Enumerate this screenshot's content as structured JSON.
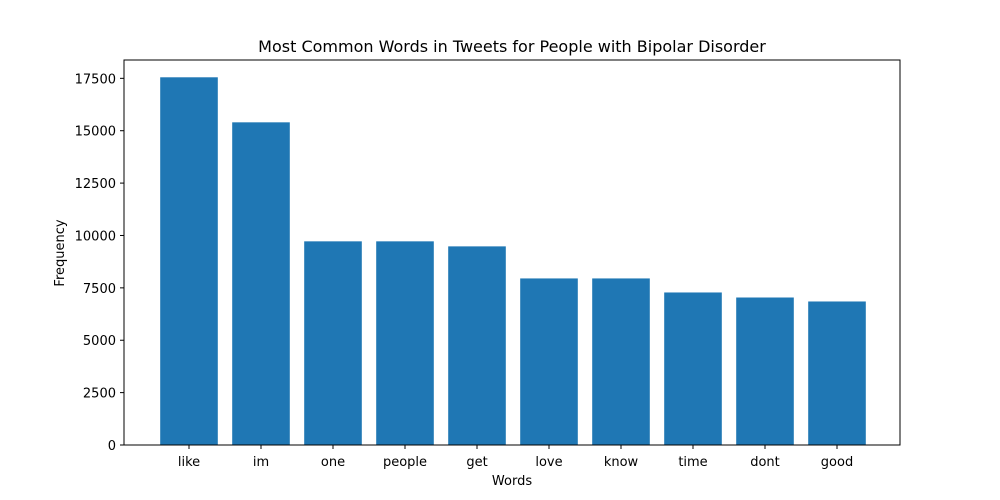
{
  "chart_data": {
    "type": "bar",
    "title": "Most Common Words in Tweets for People with Bipolar Disorder",
    "xlabel": "Words",
    "ylabel": "Frequency",
    "categories": [
      "like",
      "im",
      "one",
      "people",
      "get",
      "love",
      "know",
      "time",
      "dont",
      "good"
    ],
    "values": [
      17550,
      15400,
      9720,
      9720,
      9480,
      7950,
      7950,
      7280,
      7040,
      6850
    ],
    "ylim": [
      0,
      18375
    ],
    "yticks": [
      0,
      2500,
      5000,
      7500,
      10000,
      12500,
      15000,
      17500
    ],
    "bar_color": "#1f77b4",
    "grid": false,
    "legend": "none"
  }
}
